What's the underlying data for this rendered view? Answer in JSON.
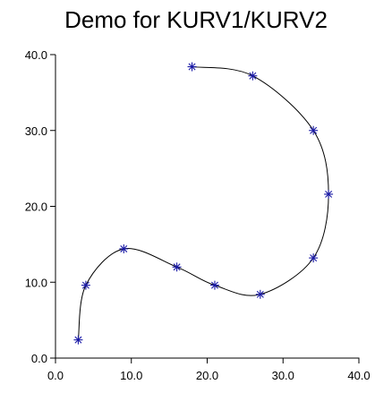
{
  "chart_data": {
    "type": "scatter",
    "title": "Demo for KURV1/KURV2",
    "xlabel": "",
    "ylabel": "",
    "xlim": [
      0,
      40
    ],
    "ylim": [
      0,
      40
    ],
    "grid": false,
    "x_ticks": [
      0,
      10,
      20,
      30,
      40
    ],
    "y_ticks": [
      0,
      10,
      20,
      30,
      40
    ],
    "x_tick_labels": [
      "0.0",
      "10.0",
      "20.0",
      "30.0",
      "40.0"
    ],
    "y_tick_labels": [
      "0.0",
      "10.0",
      "20.0",
      "30.0",
      "40.0"
    ],
    "series": [
      {
        "marker": "asterisk",
        "marker_color": "#1a1aa6",
        "curve_color": "#000000",
        "points": [
          {
            "x": 3.0,
            "y": 2.4
          },
          {
            "x": 4.0,
            "y": 9.6
          },
          {
            "x": 9.0,
            "y": 14.4
          },
          {
            "x": 16.0,
            "y": 12.0
          },
          {
            "x": 21.0,
            "y": 9.6
          },
          {
            "x": 27.0,
            "y": 8.4
          },
          {
            "x": 34.0,
            "y": 13.2
          },
          {
            "x": 36.0,
            "y": 21.6
          },
          {
            "x": 34.0,
            "y": 30.0
          },
          {
            "x": 26.0,
            "y": 37.2
          },
          {
            "x": 18.0,
            "y": 38.4
          }
        ]
      }
    ]
  }
}
